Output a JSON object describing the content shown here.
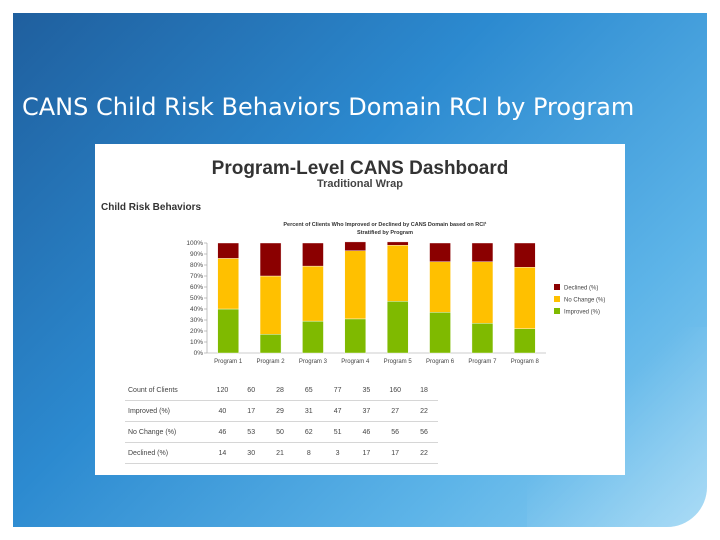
{
  "slide": {
    "title": "CANS Child Risk Behaviors Domain RCI by Program"
  },
  "dashboard": {
    "title": "Program-Level CANS Dashboard",
    "subtitle": "Traditional Wrap",
    "section": "Child Risk Behaviors"
  },
  "colors": {
    "declined": "#8b0000",
    "no_change": "#ffc000",
    "improved": "#7fba00"
  },
  "chart_data": {
    "type": "bar",
    "stacked": true,
    "title": "Percent of Clients Who Improved or Declined by CANS Domain based on RCI¹",
    "subtitle": "Stratified by Program",
    "categories": [
      "Program 1",
      "Program 2",
      "Program 3",
      "Program 4",
      "Program 5",
      "Program 6",
      "Program 7",
      "Program 8"
    ],
    "series": [
      {
        "name": "Improved (%)",
        "values": [
          40,
          17,
          29,
          31,
          47,
          37,
          27,
          22
        ]
      },
      {
        "name": "No Change (%)",
        "values": [
          46,
          53,
          50,
          62,
          51,
          46,
          56,
          56
        ]
      },
      {
        "name": "Declined (%)",
        "values": [
          14,
          30,
          21,
          8,
          3,
          17,
          17,
          22
        ]
      }
    ],
    "legend": [
      "Declined (%)",
      "No Change (%)",
      "Improved (%)"
    ],
    "legend_position": "right",
    "yticks": [
      "0%",
      "10%",
      "20%",
      "30%",
      "40%",
      "50%",
      "60%",
      "70%",
      "80%",
      "90%",
      "100%"
    ],
    "ylim": [
      0,
      100
    ],
    "xlabel": "",
    "ylabel": ""
  },
  "table": {
    "rows": [
      {
        "label": "Count of Clients",
        "values": [
          "120",
          "60",
          "28",
          "65",
          "77",
          "35",
          "160",
          "18"
        ]
      },
      {
        "label": "Improved (%)",
        "values": [
          "40",
          "17",
          "29",
          "31",
          "47",
          "37",
          "27",
          "22"
        ]
      },
      {
        "label": "No Change (%)",
        "values": [
          "46",
          "53",
          "50",
          "62",
          "51",
          "46",
          "56",
          "56"
        ]
      },
      {
        "label": "Declined (%)",
        "values": [
          "14",
          "30",
          "21",
          "8",
          "3",
          "17",
          "17",
          "22"
        ]
      }
    ]
  }
}
